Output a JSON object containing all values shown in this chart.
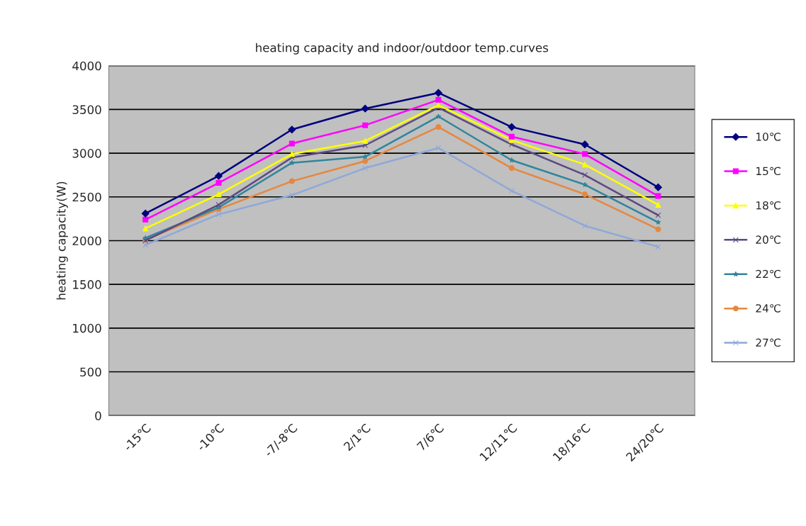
{
  "chart_data": {
    "type": "line",
    "title": "heating capacity and indoor/outdoor temp.curves",
    "ylabel": "heating capacity(W)",
    "categories": [
      "-15℃",
      "-10℃",
      "-7/-8℃",
      "2/1℃",
      "7/6℃",
      "12/11℃",
      "18/16℃",
      "24/20℃"
    ],
    "series": [
      {
        "name": "10℃",
        "color": "#000080",
        "marker": "diamond",
        "values": [
          2310,
          2740,
          3270,
          3510,
          3690,
          3300,
          3100,
          2610
        ]
      },
      {
        "name": "15℃",
        "color": "#ff00ff",
        "marker": "square",
        "values": [
          2240,
          2660,
          3110,
          3320,
          3610,
          3190,
          2990,
          2510
        ]
      },
      {
        "name": "18℃",
        "color": "#ffff00",
        "marker": "triangle",
        "values": [
          2140,
          2530,
          2990,
          3140,
          3550,
          3150,
          2870,
          2410
        ]
      },
      {
        "name": "20℃",
        "color": "#5b4a80",
        "marker": "cross",
        "values": [
          2000,
          2410,
          2950,
          3090,
          3520,
          3100,
          2750,
          2290
        ]
      },
      {
        "name": "22℃",
        "color": "#31859c",
        "marker": "star",
        "values": [
          2030,
          2380,
          2890,
          2960,
          3420,
          2920,
          2640,
          2210
        ]
      },
      {
        "name": "24℃",
        "color": "#e6873f",
        "marker": "circle",
        "values": [
          2010,
          2360,
          2680,
          2910,
          3300,
          2830,
          2530,
          2130
        ]
      },
      {
        "name": "27℃",
        "color": "#8fa8d8",
        "marker": "cross",
        "values": [
          1950,
          2300,
          2520,
          2830,
          3060,
          2570,
          2170,
          1930
        ]
      }
    ],
    "ylim": [
      0,
      4000
    ],
    "yticks": [
      0,
      500,
      1000,
      1500,
      2000,
      2500,
      3000,
      3500,
      4000
    ],
    "grid": "y",
    "legend": "right"
  }
}
